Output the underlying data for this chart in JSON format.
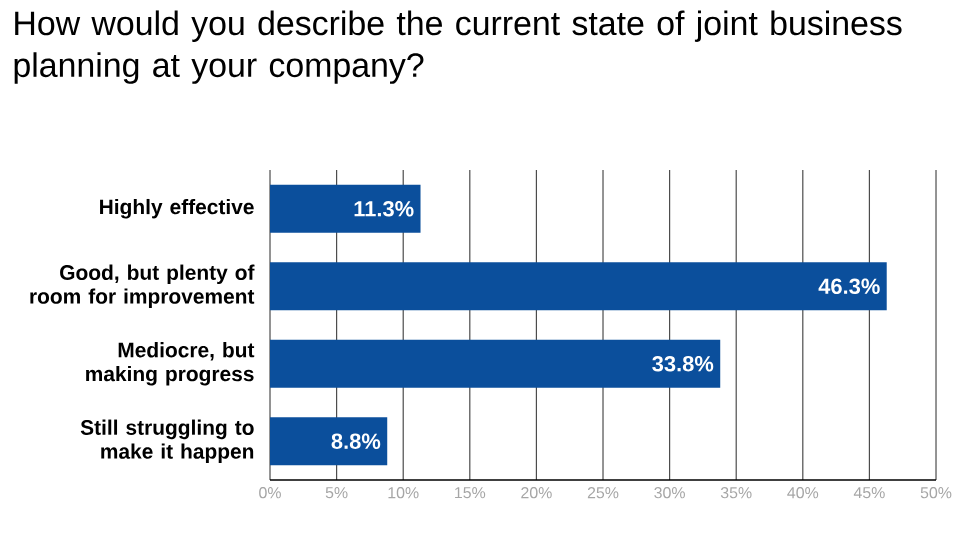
{
  "chart_data": {
    "type": "bar",
    "orientation": "horizontal",
    "title": "How would you describe the current state of joint business planning at your company?",
    "categories": [
      "Highly effective",
      "Good, but plenty of room for improvement",
      "Mediocre, but making progress",
      "Still struggling to make it happen"
    ],
    "values": [
      11.3,
      46.3,
      33.8,
      8.8
    ],
    "value_labels": [
      "11.3%",
      "46.3%",
      "33.8%",
      "8.8%"
    ],
    "color": "#0b4f9c",
    "xlim": [
      0,
      50
    ],
    "xticks": [
      {
        "value": 0,
        "label": "0%"
      },
      {
        "value": 5,
        "label": "5%"
      },
      {
        "value": 10,
        "label": "10%"
      },
      {
        "value": 15,
        "label": "15%"
      },
      {
        "value": 20,
        "label": "20%"
      },
      {
        "value": 25,
        "label": "25%"
      },
      {
        "value": 30,
        "label": "30%"
      },
      {
        "value": 35,
        "label": "35%"
      },
      {
        "value": 40,
        "label": "40%"
      },
      {
        "value": 45,
        "label": "45%"
      },
      {
        "value": 50,
        "label": "50%"
      }
    ],
    "grid": "x"
  }
}
